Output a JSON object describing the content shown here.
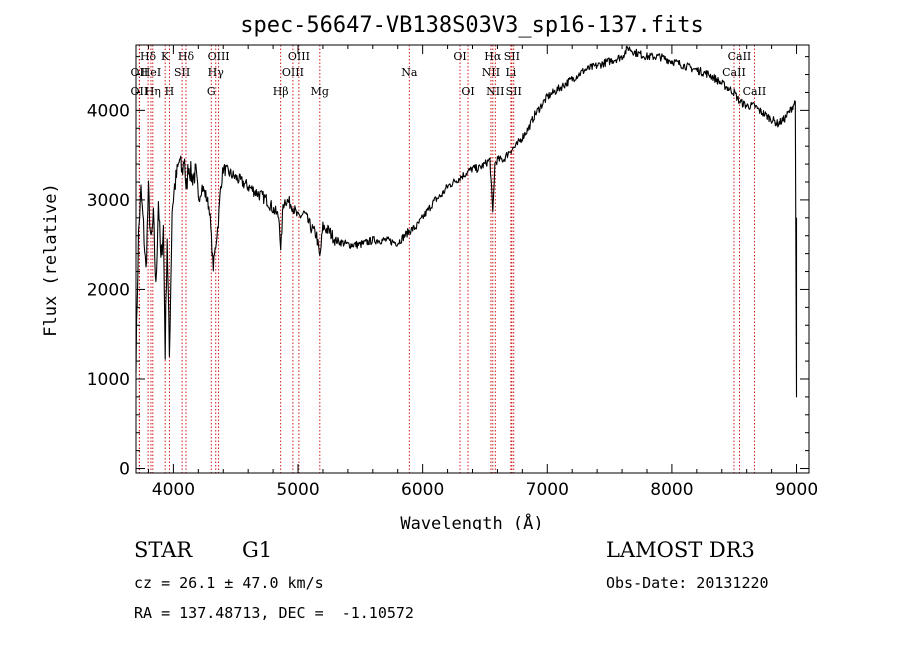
{
  "chart_data": {
    "type": "line",
    "title": "spec-56647-VB138S03V3_sp16-137.fits",
    "xlabel": "Wavelength (Å)",
    "ylabel": "Flux (relative)",
    "xlim": [
      3700,
      9100
    ],
    "ylim": [
      -50,
      4730
    ],
    "xticks": [
      4000,
      5000,
      6000,
      7000,
      8000,
      9000
    ],
    "yticks": [
      0,
      1000,
      2000,
      3000,
      4000
    ],
    "xtick_labels": [
      "4000",
      "5000",
      "6000",
      "7000",
      "8000",
      "9000"
    ],
    "ytick_labels": [
      "0",
      "1000",
      "2000",
      "3000",
      "4000"
    ],
    "grid": false,
    "series": [
      {
        "x": [
          3700,
          3720,
          3740,
          3760,
          3780,
          3800,
          3820,
          3840,
          3860,
          3880,
          3900,
          3920,
          3934,
          3950,
          3968,
          3990,
          4010,
          4030,
          4050,
          4070,
          4090,
          4101,
          4120,
          4150,
          4180,
          4200,
          4230,
          4260,
          4290,
          4310,
          4320,
          4340,
          4360,
          4380,
          4400,
          4450,
          4500,
          4550,
          4600,
          4650,
          4700,
          4750,
          4800,
          4850,
          4861,
          4880,
          4900,
          4950,
          5000,
          5050,
          5100,
          5150,
          5175,
          5200,
          5250,
          5300,
          5400,
          5500,
          5600,
          5700,
          5800,
          5890,
          5950,
          6000,
          6050,
          6100,
          6150,
          6200,
          6250,
          6300,
          6350,
          6400,
          6450,
          6500,
          6540,
          6563,
          6580,
          6600,
          6650,
          6700,
          6750,
          6800,
          6850,
          6900,
          6950,
          7000,
          7100,
          7200,
          7300,
          7400,
          7500,
          7600,
          7650,
          7700,
          7800,
          7900,
          8000,
          8100,
          8200,
          8300,
          8400,
          8500,
          8542,
          8600,
          8662,
          8700,
          8750,
          8800,
          8850,
          8900,
          8950,
          8990,
          9000
        ],
        "y": [
          1200,
          2600,
          3100,
          2700,
          2200,
          3100,
          2500,
          2800,
          2000,
          3000,
          2300,
          2700,
          1300,
          2600,
          1250,
          2900,
          3150,
          3300,
          3450,
          3300,
          3500,
          3050,
          3400,
          3250,
          3300,
          3000,
          3150,
          3050,
          2900,
          2450,
          2250,
          2500,
          2750,
          3150,
          3350,
          3300,
          3250,
          3200,
          3150,
          3100,
          3050,
          3000,
          2900,
          2800,
          2400,
          2950,
          3000,
          2950,
          2800,
          2850,
          2700,
          2600,
          2350,
          2700,
          2650,
          2550,
          2500,
          2500,
          2550,
          2550,
          2520,
          2650,
          2700,
          2800,
          2900,
          3000,
          3050,
          3150,
          3200,
          3250,
          3300,
          3350,
          3350,
          3400,
          3450,
          2850,
          3400,
          3450,
          3450,
          3550,
          3600,
          3700,
          3800,
          3950,
          4050,
          4150,
          4250,
          4350,
          4450,
          4500,
          4550,
          4600,
          4700,
          4650,
          4600,
          4600,
          4550,
          4500,
          4450,
          4400,
          4300,
          4200,
          4100,
          4050,
          4050,
          4000,
          3950,
          3900,
          3850,
          3900,
          4000,
          4100,
          800
        ]
      }
    ],
    "spectral_lines": [
      {
        "label": "Hδ",
        "x": 3797,
        "row": 0
      },
      {
        "label": "OII",
        "x": 3727,
        "row": 1
      },
      {
        "label": "OII",
        "x": 3727,
        "row": 2
      },
      {
        "label": "HeI",
        "x": 3820,
        "row": 1
      },
      {
        "label": "Hη",
        "x": 3835,
        "row": 2
      },
      {
        "label": "K",
        "x": 3934,
        "row": 0
      },
      {
        "label": "SII",
        "x": 4070,
        "row": 1
      },
      {
        "label": "H",
        "x": 3968,
        "row": 2
      },
      {
        "label": "Hδ",
        "x": 4101,
        "row": 0
      },
      {
        "label": "OIII",
        "x": 4363,
        "row": 0
      },
      {
        "label": "Hγ",
        "x": 4340,
        "row": 1
      },
      {
        "label": "G",
        "x": 4304,
        "row": 2
      },
      {
        "label": "Hβ",
        "x": 4861,
        "row": 2
      },
      {
        "label": "OIII",
        "x": 5007,
        "row": 0
      },
      {
        "label": "OIII",
        "x": 4959,
        "row": 1
      },
      {
        "label": "Mg",
        "x": 5175,
        "row": 2
      },
      {
        "label": "Na",
        "x": 5893,
        "row": 1
      },
      {
        "label": "OI",
        "x": 6300,
        "row": 0
      },
      {
        "label": "OI",
        "x": 6364,
        "row": 2
      },
      {
        "label": "Hα",
        "x": 6563,
        "row": 0
      },
      {
        "label": "SII",
        "x": 6716,
        "row": 0
      },
      {
        "label": "NII",
        "x": 6548,
        "row": 1
      },
      {
        "label": "Li",
        "x": 6708,
        "row": 1
      },
      {
        "label": "NII",
        "x": 6583,
        "row": 2
      },
      {
        "label": "SII",
        "x": 6731,
        "row": 2
      },
      {
        "label": "CaII",
        "x": 8542,
        "row": 0
      },
      {
        "label": "CaII",
        "x": 8498,
        "row": 1
      },
      {
        "label": "CaII",
        "x": 8662,
        "row": 2
      }
    ],
    "line_color": "#000000",
    "marker_color": "#cc0000"
  },
  "info": {
    "class": "STAR",
    "subclass": "G1",
    "survey": "LAMOST DR3",
    "cz": "cz = 26.1 ± 47.0 km/s",
    "obs_date": "Obs-Date: 20131220",
    "radec": "RA = 137.48713, DEC =  -1.10572"
  }
}
